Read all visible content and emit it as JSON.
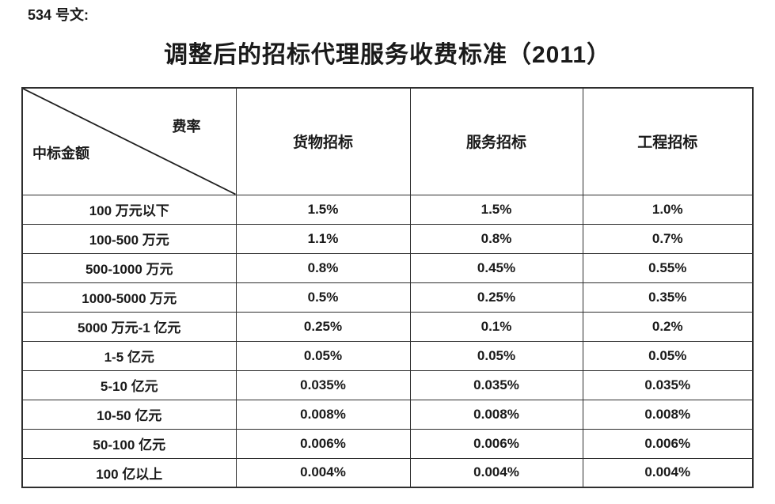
{
  "page": {
    "doc_label": "534 号文:",
    "title": "调整后的招标代理服务收费标准（2011）"
  },
  "table": {
    "corner": {
      "top_right": "费率",
      "bottom_left": "中标金额"
    },
    "columns": [
      "货物招标",
      "服务招标",
      "工程招标"
    ],
    "rows": [
      {
        "amount": "100 万元以下",
        "values": [
          "1.5%",
          "1.5%",
          "1.0%"
        ]
      },
      {
        "amount": "100-500 万元",
        "values": [
          "1.1%",
          "0.8%",
          "0.7%"
        ]
      },
      {
        "amount": "500-1000 万元",
        "values": [
          "0.8%",
          "0.45%",
          "0.55%"
        ]
      },
      {
        "amount": "1000-5000 万元",
        "values": [
          "0.5%",
          "0.25%",
          "0.35%"
        ]
      },
      {
        "amount": "5000 万元-1 亿元",
        "values": [
          "0.25%",
          "0.1%",
          "0.2%"
        ]
      },
      {
        "amount": "1-5 亿元",
        "values": [
          "0.05%",
          "0.05%",
          "0.05%"
        ]
      },
      {
        "amount": "5-10 亿元",
        "values": [
          "0.035%",
          "0.035%",
          "0.035%"
        ]
      },
      {
        "amount": "10-50 亿元",
        "values": [
          "0.008%",
          "0.008%",
          "0.008%"
        ]
      },
      {
        "amount": "50-100 亿元",
        "values": [
          "0.006%",
          "0.006%",
          "0.006%"
        ]
      },
      {
        "amount": "100 亿以上",
        "values": [
          "0.004%",
          "0.004%",
          "0.004%"
        ]
      }
    ]
  }
}
